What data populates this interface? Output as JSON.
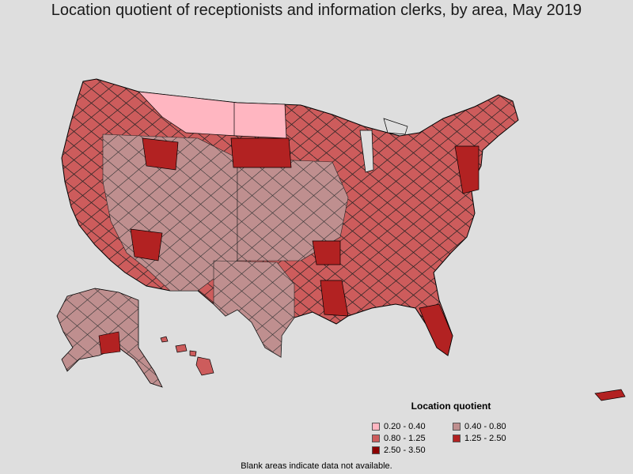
{
  "title": "Location quotient of receptionists and information clerks, by area, May 2019",
  "legend": {
    "title": "Location quotient",
    "items": [
      {
        "label": "0.20 - 0.40",
        "color": "#ffb6c1"
      },
      {
        "label": "0.40 - 0.80",
        "color": "#bf8f8f"
      },
      {
        "label": "0.80 - 1.25",
        "color": "#cd5c5c"
      },
      {
        "label": "1.25 - 2.50",
        "color": "#b22222"
      },
      {
        "label": "2.50 - 3.50",
        "color": "#8b0000"
      }
    ]
  },
  "footnote": "Blank areas indicate data not available.",
  "colors": {
    "background": "#dedede",
    "border": "#000000"
  }
}
